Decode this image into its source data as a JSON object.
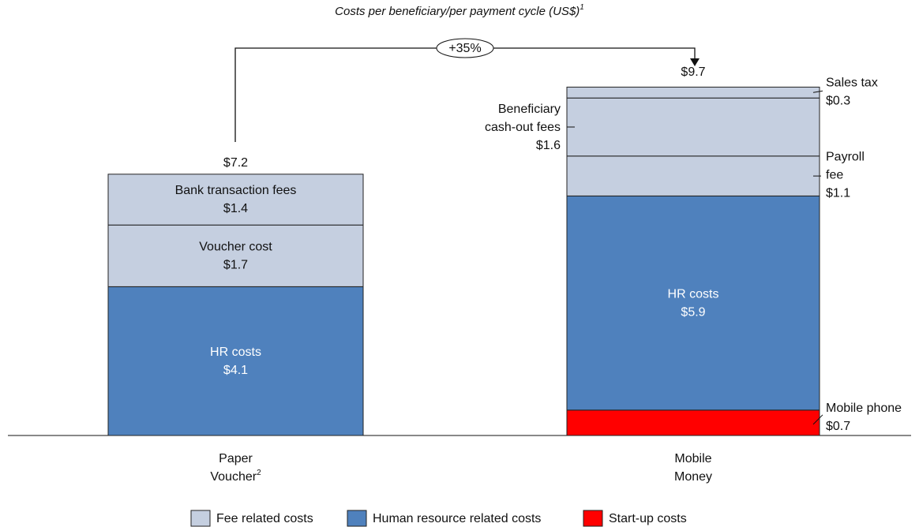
{
  "chart_data": {
    "type": "stacked_bar",
    "title": "Costs per beneficiary/per payment cycle (US$)",
    "title_note": "1",
    "annotation": "+35%",
    "categories": [
      [
        "Paper",
        "Voucher"
      ],
      [
        "Mobile",
        "Money"
      ]
    ],
    "category_notes": [
      "2",
      null
    ],
    "totals": [
      7.2,
      9.7
    ],
    "total_labels": [
      "$7.2",
      "$9.7"
    ],
    "legend": [
      {
        "name": "Fee related costs",
        "color": "#c5cfe0"
      },
      {
        "name": "Human resource related costs",
        "color": "#4f81bd"
      },
      {
        "name": "Start-up costs",
        "color": "#ff0000"
      }
    ],
    "bars": [
      {
        "segments": [
          {
            "label": [
              "HR costs"
            ],
            "value": 4.1,
            "value_label": "$4.1",
            "color": "#4f81bd"
          },
          {
            "label": [
              "Voucher cost"
            ],
            "value": 1.7,
            "value_label": "$1.7",
            "color": "#c5cfe0"
          },
          {
            "label": [
              "Bank transaction fees"
            ],
            "value": 1.4,
            "value_label": "$1.4",
            "color": "#c5cfe0"
          }
        ]
      },
      {
        "segments": [
          {
            "label": [
              "Mobile phone"
            ],
            "value": 0.7,
            "value_label": "$0.7",
            "color": "#ff0000"
          },
          {
            "label": [
              "HR costs"
            ],
            "value": 5.9,
            "value_label": "$5.9",
            "color": "#4f81bd"
          },
          {
            "label": [
              "Payroll",
              "fee"
            ],
            "value": 1.1,
            "value_label": "$1.1",
            "color": "#c5cfe0"
          },
          {
            "label": [
              "Beneficiary",
              "cash-out fees"
            ],
            "value": 1.6,
            "value_label": "$1.6",
            "color": "#c5cfe0"
          },
          {
            "label": [
              "Sales tax"
            ],
            "value": 0.3,
            "value_label": "$0.3",
            "color": "#c5cfe0"
          }
        ]
      }
    ]
  }
}
